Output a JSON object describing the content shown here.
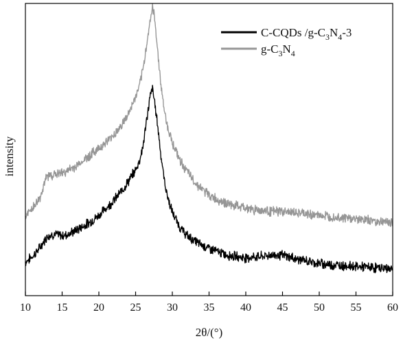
{
  "chart_data": {
    "type": "line",
    "xlabel": "2θ/(°)",
    "ylabel": "intensity",
    "xlim": [
      10,
      60
    ],
    "ylim": [
      0,
      100
    ],
    "x_ticks": [
      10,
      15,
      20,
      25,
      30,
      35,
      40,
      45,
      50,
      55,
      60
    ],
    "y_ticks_shown": false,
    "grid": false,
    "legend_position": "top-right",
    "series": [
      {
        "name": "C-CQDs/g-C3N4-3",
        "legend_label": "C-CQDs /g-C3N4-3",
        "color": "#000000",
        "x": [
          10,
          11,
          12,
          13,
          14,
          15,
          16,
          17,
          18,
          19,
          20,
          21,
          22,
          23,
          24,
          25,
          25.5,
          26,
          26.5,
          27,
          27.3,
          27.6,
          28,
          28.5,
          29,
          29.5,
          30,
          31,
          32,
          33,
          34,
          35,
          36,
          37,
          38,
          39,
          40,
          41,
          42,
          43,
          44,
          45,
          46,
          47,
          48,
          49,
          50,
          52,
          54,
          56,
          58,
          60
        ],
        "y": [
          11.5,
          13.5,
          16.5,
          20.5,
          21.0,
          20.5,
          21.2,
          22.5,
          24.0,
          25.5,
          27.5,
          30.0,
          32.5,
          35.5,
          39.0,
          43.0,
          46.0,
          51.0,
          60.0,
          68.5,
          71.0,
          66.0,
          58.5,
          47.0,
          38.0,
          32.5,
          28.5,
          23.5,
          20.5,
          18.8,
          17.3,
          16.2,
          15.2,
          14.2,
          13.7,
          13.3,
          13.0,
          13.2,
          13.4,
          13.7,
          14.0,
          13.8,
          13.2,
          12.5,
          12.0,
          11.5,
          11.0,
          10.5,
          10.2,
          9.8,
          9.5,
          9.2
        ]
      },
      {
        "name": "g-C3N4",
        "legend_label": "g-C3N4",
        "color": "#969696",
        "x": [
          10,
          11,
          12,
          12.5,
          13,
          14,
          15,
          16,
          17,
          18,
          19,
          20,
          21,
          22,
          23,
          24,
          25,
          25.5,
          26,
          26.5,
          27,
          27.3,
          27.6,
          28,
          28.5,
          29,
          29.5,
          30,
          31,
          32,
          33,
          34,
          35,
          36,
          37,
          38,
          39,
          40,
          41,
          42,
          43,
          44,
          45,
          46,
          47,
          48,
          49,
          50,
          52,
          54,
          56,
          58,
          60
        ],
        "y": [
          27.0,
          30.0,
          33.5,
          38.0,
          41.0,
          41.5,
          42.0,
          43.0,
          44.5,
          46.5,
          48.5,
          50.5,
          52.5,
          55.0,
          58.0,
          62.0,
          68.0,
          71.5,
          77.0,
          86.0,
          94.5,
          98.5,
          95.0,
          84.0,
          71.0,
          62.0,
          56.5,
          52.5,
          46.5,
          42.5,
          39.0,
          36.5,
          34.5,
          33.0,
          32.0,
          31.0,
          30.5,
          30.0,
          29.5,
          29.3,
          29.0,
          28.8,
          28.8,
          28.6,
          28.3,
          28.0,
          27.7,
          27.5,
          27.0,
          26.5,
          26.0,
          25.5,
          25.0
        ]
      }
    ]
  }
}
